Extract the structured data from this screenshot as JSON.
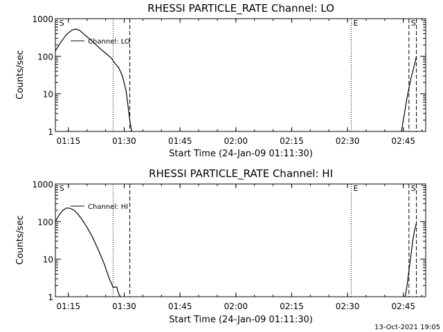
{
  "footer": {
    "timestamp": "13-Oct-2021 19:05"
  },
  "chart_data": [
    {
      "type": "line",
      "title": "RHESSI PARTICLE_RATE Channel: LO",
      "xlabel": "Start Time (24-Jan-09 01:11:30)",
      "ylabel": "Counts/sec",
      "yscale": "log",
      "xlim": [
        "01:11:30",
        "02:51:00"
      ],
      "ylim": [
        1,
        1000
      ],
      "x_ticks": [
        "01:15",
        "01:30",
        "01:45",
        "02:00",
        "02:15",
        "02:30",
        "02:45"
      ],
      "y_ticks": [
        "1",
        "10",
        "100",
        "1000"
      ],
      "legend": {
        "label": "Channel: LO",
        "position": "top-left"
      },
      "markers": [
        {
          "label": "S",
          "time": "01:12:00",
          "style": "none"
        },
        {
          "label": "",
          "time": "01:27:00",
          "style": "dotted"
        },
        {
          "label": "",
          "time": "01:31:30",
          "style": "dashed"
        },
        {
          "label": "E",
          "time": "02:31:00",
          "style": "dotted"
        },
        {
          "label": "S",
          "time": "02:46:30",
          "style": "dashed"
        },
        {
          "label": "",
          "time": "02:48:30",
          "style": "dashed"
        }
      ],
      "series": [
        {
          "segments": [
            {
              "x": [
                "01:11:30",
                "01:13:00",
                "01:14:30",
                "01:16:00",
                "01:17:00",
                "01:18:00",
                "01:19:00",
                "01:20:30",
                "01:22:00",
                "01:23:30",
                "01:25:00",
                "01:26:30",
                "01:27:30",
                "01:28:30",
                "01:29:30",
                "01:30:30",
                "01:31:00",
                "01:31:30",
                "01:32:00"
              ],
              "y": [
                140,
                240,
                380,
                500,
                530,
                490,
                400,
                300,
                220,
                160,
                120,
                90,
                65,
                50,
                30,
                12,
                5,
                2,
                1
              ]
            },
            {
              "x": [
                "02:44:30",
                "02:45:00",
                "02:46:00",
                "02:47:00",
                "02:48:00",
                "02:48:30"
              ],
              "y": [
                1,
                2,
                8,
                25,
                60,
                100
              ]
            }
          ]
        }
      ]
    },
    {
      "type": "line",
      "title": "RHESSI PARTICLE_RATE Channel: HI",
      "xlabel": "Start Time (24-Jan-09 01:11:30)",
      "ylabel": "Counts/sec",
      "yscale": "log",
      "xlim": [
        "01:11:30",
        "02:51:00"
      ],
      "ylim": [
        1,
        1000
      ],
      "x_ticks": [
        "01:15",
        "01:30",
        "01:45",
        "02:00",
        "02:15",
        "02:30",
        "02:45"
      ],
      "y_ticks": [
        "1",
        "10",
        "100",
        "1000"
      ],
      "legend": {
        "label": "Channel: HI",
        "position": "top-left"
      },
      "markers": [
        {
          "label": "S",
          "time": "01:12:00",
          "style": "none"
        },
        {
          "label": "",
          "time": "01:27:00",
          "style": "dotted"
        },
        {
          "label": "",
          "time": "01:31:30",
          "style": "dashed"
        },
        {
          "label": "E",
          "time": "02:31:00",
          "style": "dotted"
        },
        {
          "label": "S",
          "time": "02:46:30",
          "style": "dashed"
        },
        {
          "label": "",
          "time": "02:48:30",
          "style": "dashed"
        }
      ],
      "series": [
        {
          "segments": [
            {
              "x": [
                "01:11:30",
                "01:12:30",
                "01:13:30",
                "01:14:30",
                "01:15:30",
                "01:16:30",
                "01:17:30",
                "01:18:30",
                "01:20:00",
                "01:21:30",
                "01:23:00",
                "01:24:30",
                "01:26:00",
                "01:27:00",
                "01:27:30",
                "01:28:00",
                "01:28:30",
                "01:29:00"
              ],
              "y": [
                100,
                150,
                200,
                230,
                225,
                200,
                160,
                120,
                70,
                38,
                18,
                8,
                3,
                1.8,
                1.8,
                1.8,
                1.2,
                1
              ]
            },
            {
              "x": [
                "02:45:30",
                "02:46:00",
                "02:46:30",
                "02:47:00",
                "02:47:30",
                "02:48:00",
                "02:48:30"
              ],
              "y": [
                1,
                2,
                5,
                12,
                30,
                60,
                90
              ]
            }
          ]
        }
      ]
    }
  ]
}
